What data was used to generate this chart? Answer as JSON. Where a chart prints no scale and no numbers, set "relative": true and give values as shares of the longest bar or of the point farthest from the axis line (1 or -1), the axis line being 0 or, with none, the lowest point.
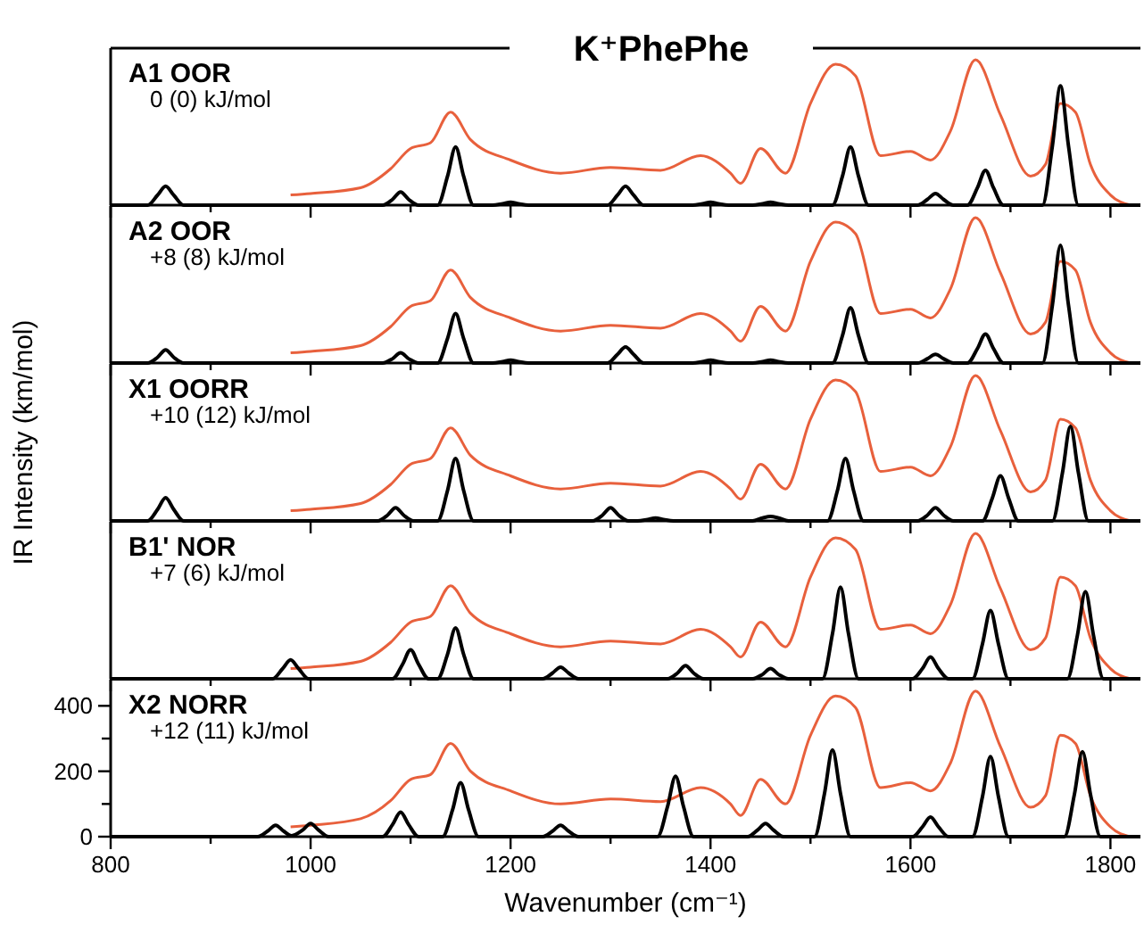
{
  "chart_data": [
    {
      "type": "line",
      "relative": true,
      "title": "K⁺PhePhe",
      "ylabel": "IR Intensity  (km/mol)",
      "annotations": [
        "A1  OOR",
        "0 (0) kJ/mol"
      ],
      "tick_labels": false,
      "xlim": [
        800,
        1830
      ],
      "xticks": [
        800,
        {
          "value": 900,
          "label": null
        },
        1000,
        {
          "value": 1100,
          "label": null
        },
        1200,
        {
          "value": 1300,
          "label": null
        },
        1400,
        {
          "value": 1500,
          "label": null
        },
        1600,
        {
          "value": 1700,
          "label": null
        },
        1800
      ],
      "series": [
        {
          "color": "#e8603c",
          "x": [
            980,
            1000,
            1050,
            1080,
            1100,
            1120,
            1140,
            1160,
            1200,
            1250,
            1300,
            1350,
            1390,
            1420,
            1430,
            1450,
            1475,
            1500,
            1525,
            1545,
            1570,
            1600,
            1620,
            1640,
            1665,
            1690,
            1720,
            1735,
            1750,
            1765,
            1780,
            1800,
            1820
          ],
          "values": [
            0.07,
            0.08,
            0.12,
            0.25,
            0.39,
            0.43,
            0.64,
            0.45,
            0.31,
            0.22,
            0.26,
            0.24,
            0.34,
            0.22,
            0.15,
            0.39,
            0.22,
            0.7,
            0.97,
            0.89,
            0.34,
            0.37,
            0.31,
            0.51,
            1,
            0.62,
            0.2,
            0.28,
            0.7,
            0.64,
            0.28,
            0.07,
            0
          ]
        },
        {
          "color": "#000000",
          "x": [
            800,
            837,
            847,
            855,
            863,
            873,
            1072,
            1082,
            1090,
            1098,
            1108,
            1127,
            1137,
            1145,
            1153,
            1163,
            1182,
            1192,
            1200,
            1208,
            1218,
            1297,
            1307,
            1315,
            1323,
            1333,
            1382,
            1392,
            1400,
            1408,
            1418,
            1442,
            1452,
            1460,
            1468,
            1478,
            1522,
            1532,
            1540,
            1548,
            1558,
            1607,
            1617,
            1625,
            1633,
            1643,
            1657,
            1667,
            1675,
            1683,
            1693,
            1732,
            1742,
            1750,
            1758,
            1768,
            1830
          ],
          "values": [
            0,
            0,
            0.07,
            0.13,
            0.07,
            0,
            0,
            0.04,
            0.09,
            0.04,
            0,
            0,
            0.2,
            0.4,
            0.2,
            0,
            0,
            0.01,
            0.02,
            0.01,
            0,
            0,
            0.07,
            0.13,
            0.07,
            0,
            0,
            0.01,
            0.02,
            0.01,
            0,
            0,
            0.01,
            0.02,
            0.01,
            0,
            0,
            0.2,
            0.4,
            0.2,
            0,
            0,
            0.04,
            0.08,
            0.04,
            0,
            0,
            0.12,
            0.24,
            0.12,
            0,
            0,
            0.41,
            0.82,
            0.41,
            0,
            0
          ]
        }
      ]
    },
    {
      "type": "line",
      "relative": true,
      "annotations": [
        "A2  OOR",
        "+8 (8) kJ/mol"
      ],
      "tick_labels": false,
      "xlim": [
        800,
        1830
      ],
      "xticks": [
        800,
        {
          "value": 900,
          "label": null
        },
        1000,
        {
          "value": 1100,
          "label": null
        },
        1200,
        {
          "value": 1300,
          "label": null
        },
        1400,
        {
          "value": 1500,
          "label": null
        },
        1600,
        {
          "value": 1700,
          "label": null
        },
        1800
      ],
      "series": [
        {
          "color": "#e8603c",
          "x": [
            980,
            1000,
            1050,
            1080,
            1100,
            1120,
            1140,
            1160,
            1200,
            1250,
            1300,
            1350,
            1390,
            1420,
            1430,
            1450,
            1475,
            1500,
            1525,
            1545,
            1570,
            1600,
            1620,
            1640,
            1665,
            1690,
            1720,
            1735,
            1750,
            1765,
            1780,
            1800,
            1820
          ],
          "values": [
            0.07,
            0.08,
            0.12,
            0.25,
            0.39,
            0.43,
            0.64,
            0.45,
            0.31,
            0.22,
            0.26,
            0.24,
            0.34,
            0.22,
            0.15,
            0.39,
            0.22,
            0.7,
            0.97,
            0.89,
            0.34,
            0.37,
            0.31,
            0.51,
            1,
            0.62,
            0.2,
            0.28,
            0.7,
            0.64,
            0.28,
            0.07,
            0
          ]
        },
        {
          "color": "#000000",
          "x": [
            800,
            837,
            847,
            855,
            863,
            873,
            1072,
            1082,
            1090,
            1098,
            1108,
            1127,
            1137,
            1145,
            1153,
            1163,
            1182,
            1192,
            1200,
            1208,
            1218,
            1297,
            1307,
            1315,
            1323,
            1333,
            1382,
            1392,
            1400,
            1408,
            1418,
            1442,
            1452,
            1460,
            1468,
            1478,
            1522,
            1532,
            1540,
            1548,
            1558,
            1607,
            1617,
            1625,
            1633,
            1643,
            1657,
            1667,
            1675,
            1683,
            1693,
            1732,
            1742,
            1750,
            1758,
            1768,
            1830
          ],
          "values": [
            0,
            0,
            0.04,
            0.09,
            0.04,
            0,
            0,
            0.03,
            0.07,
            0.03,
            0,
            0,
            0.17,
            0.34,
            0.17,
            0,
            0,
            0.01,
            0.02,
            0.01,
            0,
            0,
            0.06,
            0.11,
            0.06,
            0,
            0,
            0.01,
            0.02,
            0.01,
            0,
            0,
            0.01,
            0.02,
            0.01,
            0,
            0,
            0.19,
            0.38,
            0.19,
            0,
            0,
            0.03,
            0.06,
            0.03,
            0,
            0,
            0.1,
            0.2,
            0.1,
            0,
            0,
            0.4,
            0.81,
            0.4,
            0,
            0
          ]
        }
      ]
    },
    {
      "type": "line",
      "relative": true,
      "annotations": [
        "X1  OORR",
        "+10 (12) kJ/mol"
      ],
      "tick_labels": false,
      "xlim": [
        800,
        1830
      ],
      "xticks": [
        800,
        {
          "value": 900,
          "label": null
        },
        1000,
        {
          "value": 1100,
          "label": null
        },
        1200,
        {
          "value": 1300,
          "label": null
        },
        1400,
        {
          "value": 1500,
          "label": null
        },
        1600,
        {
          "value": 1700,
          "label": null
        },
        1800
      ],
      "series": [
        {
          "color": "#e8603c",
          "x": [
            980,
            1000,
            1050,
            1080,
            1100,
            1120,
            1140,
            1160,
            1200,
            1250,
            1300,
            1350,
            1390,
            1420,
            1430,
            1450,
            1475,
            1500,
            1525,
            1545,
            1570,
            1600,
            1620,
            1640,
            1665,
            1690,
            1720,
            1735,
            1750,
            1765,
            1780,
            1800,
            1820
          ],
          "values": [
            0.07,
            0.08,
            0.12,
            0.25,
            0.39,
            0.43,
            0.64,
            0.45,
            0.31,
            0.22,
            0.26,
            0.24,
            0.34,
            0.22,
            0.15,
            0.39,
            0.22,
            0.7,
            0.97,
            0.89,
            0.34,
            0.37,
            0.31,
            0.51,
            1,
            0.62,
            0.2,
            0.28,
            0.7,
            0.64,
            0.28,
            0.07,
            0
          ]
        },
        {
          "color": "#000000",
          "x": [
            800,
            837,
            847,
            855,
            863,
            873,
            1067,
            1077,
            1085,
            1093,
            1103,
            1127,
            1137,
            1145,
            1153,
            1163,
            1282,
            1292,
            1300,
            1308,
            1318,
            1327,
            1337,
            1345,
            1353,
            1363,
            1442,
            1452,
            1460,
            1468,
            1478,
            1517,
            1527,
            1535,
            1543,
            1553,
            1607,
            1617,
            1625,
            1633,
            1643,
            1672,
            1682,
            1690,
            1698,
            1708,
            1742,
            1752,
            1760,
            1768,
            1778,
            1830
          ],
          "values": [
            0,
            0,
            0.08,
            0.16,
            0.08,
            0,
            0,
            0.04,
            0.09,
            0.04,
            0,
            0,
            0.21,
            0.43,
            0.21,
            0,
            0,
            0.04,
            0.09,
            0.04,
            0,
            0,
            0.01,
            0.02,
            0.01,
            0,
            0,
            0.02,
            0.03,
            0.02,
            0,
            0,
            0.21,
            0.43,
            0.21,
            0,
            0,
            0.04,
            0.09,
            0.04,
            0,
            0,
            0.16,
            0.31,
            0.16,
            0,
            0,
            0.33,
            0.65,
            0.33,
            0,
            0
          ]
        }
      ]
    },
    {
      "type": "line",
      "relative": true,
      "annotations": [
        "B1'  NOR",
        "+7 (6) kJ/mol"
      ],
      "tick_labels": false,
      "xlim": [
        800,
        1830
      ],
      "xticks": [
        800,
        {
          "value": 900,
          "label": null
        },
        1000,
        {
          "value": 1100,
          "label": null
        },
        1200,
        {
          "value": 1300,
          "label": null
        },
        1400,
        {
          "value": 1500,
          "label": null
        },
        1600,
        {
          "value": 1700,
          "label": null
        },
        1800
      ],
      "series": [
        {
          "color": "#e8603c",
          "x": [
            980,
            1000,
            1050,
            1080,
            1100,
            1120,
            1140,
            1160,
            1200,
            1250,
            1300,
            1350,
            1390,
            1420,
            1430,
            1450,
            1475,
            1500,
            1525,
            1545,
            1570,
            1600,
            1620,
            1640,
            1665,
            1690,
            1720,
            1735,
            1750,
            1765,
            1780,
            1800,
            1820
          ],
          "values": [
            0.07,
            0.08,
            0.12,
            0.25,
            0.39,
            0.43,
            0.64,
            0.45,
            0.31,
            0.22,
            0.26,
            0.24,
            0.34,
            0.22,
            0.15,
            0.39,
            0.22,
            0.7,
            0.97,
            0.89,
            0.34,
            0.37,
            0.31,
            0.51,
            1,
            0.62,
            0.2,
            0.28,
            0.7,
            0.64,
            0.28,
            0.07,
            0
          ]
        },
        {
          "color": "#000000",
          "x": [
            800,
            962,
            972,
            980,
            988,
            998,
            1082,
            1092,
            1100,
            1108,
            1118,
            1127,
            1137,
            1145,
            1153,
            1163,
            1232,
            1242,
            1250,
            1258,
            1268,
            1357,
            1367,
            1375,
            1383,
            1393,
            1442,
            1452,
            1460,
            1468,
            1478,
            1512,
            1522,
            1530,
            1538,
            1548,
            1602,
            1612,
            1620,
            1628,
            1638,
            1662,
            1672,
            1680,
            1688,
            1698,
            1757,
            1767,
            1775,
            1783,
            1793,
            1830
          ],
          "values": [
            0,
            0,
            0.07,
            0.13,
            0.07,
            0,
            0,
            0.1,
            0.2,
            0.1,
            0,
            0,
            0.17,
            0.35,
            0.17,
            0,
            0,
            0.04,
            0.08,
            0.04,
            0,
            0,
            0.04,
            0.09,
            0.04,
            0,
            0,
            0.03,
            0.07,
            0.03,
            0,
            0,
            0.31,
            0.63,
            0.31,
            0,
            0,
            0.07,
            0.15,
            0.07,
            0,
            0,
            0.24,
            0.47,
            0.24,
            0,
            0,
            0.3,
            0.6,
            0.3,
            0,
            0
          ]
        }
      ]
    },
    {
      "type": "line",
      "xlabel": "Wavenumber  (cm⁻¹)",
      "annotations": [
        "X2  NORR",
        "+12 (11) kJ/mol"
      ],
      "xlim": [
        800,
        1830
      ],
      "ylim": [
        0,
        480
      ],
      "xticks": [
        800,
        {
          "value": 900,
          "label": null
        },
        1000,
        {
          "value": 1100,
          "label": null
        },
        1200,
        {
          "value": 1300,
          "label": null
        },
        1400,
        {
          "value": 1500,
          "label": null
        },
        1600,
        {
          "value": 1700,
          "label": null
        },
        1800
      ],
      "yticks": [
        0,
        {
          "value": 100,
          "label": null
        },
        200,
        {
          "value": 300,
          "label": null
        },
        400
      ],
      "series": [
        {
          "color": "#e8603c",
          "x": [
            980,
            1000,
            1050,
            1080,
            1100,
            1120,
            1140,
            1160,
            1200,
            1250,
            1300,
            1350,
            1390,
            1420,
            1430,
            1450,
            1475,
            1500,
            1525,
            1545,
            1570,
            1600,
            1620,
            1640,
            1665,
            1690,
            1720,
            1735,
            1750,
            1765,
            1780,
            1800,
            1820
          ],
          "values": [
            30,
            35,
            55,
            110,
            175,
            190,
            285,
            200,
            140,
            100,
            115,
            107,
            150,
            100,
            65,
            175,
            100,
            310,
            430,
            395,
            150,
            165,
            140,
            225,
            445,
            275,
            90,
            125,
            310,
            285,
            125,
            30,
            0
          ]
        },
        {
          "color": "#000000",
          "x": [
            800,
            947,
            957,
            965,
            973,
            981,
            992,
            1000,
            1008,
            1018,
            1072,
            1082,
            1090,
            1098,
            1108,
            1132,
            1142,
            1150,
            1158,
            1168,
            1232,
            1242,
            1250,
            1258,
            1268,
            1347,
            1357,
            1365,
            1373,
            1383,
            1437,
            1447,
            1455,
            1463,
            1473,
            1504,
            1514,
            1522,
            1530,
            1540,
            1602,
            1612,
            1620,
            1628,
            1638,
            1662,
            1672,
            1680,
            1688,
            1698,
            1754,
            1764,
            1772,
            1780,
            1790,
            1830
          ],
          "values": [
            0,
            0,
            17,
            35,
            17,
            3,
            20,
            40,
            20,
            0,
            0,
            37,
            75,
            37,
            0,
            0,
            82,
            165,
            82,
            0,
            0,
            17,
            35,
            17,
            0,
            0,
            92,
            185,
            92,
            0,
            0,
            20,
            40,
            20,
            0,
            0,
            132,
            265,
            132,
            0,
            0,
            30,
            60,
            30,
            0,
            0,
            122,
            245,
            122,
            0,
            0,
            130,
            260,
            130,
            0,
            0
          ]
        }
      ]
    }
  ]
}
